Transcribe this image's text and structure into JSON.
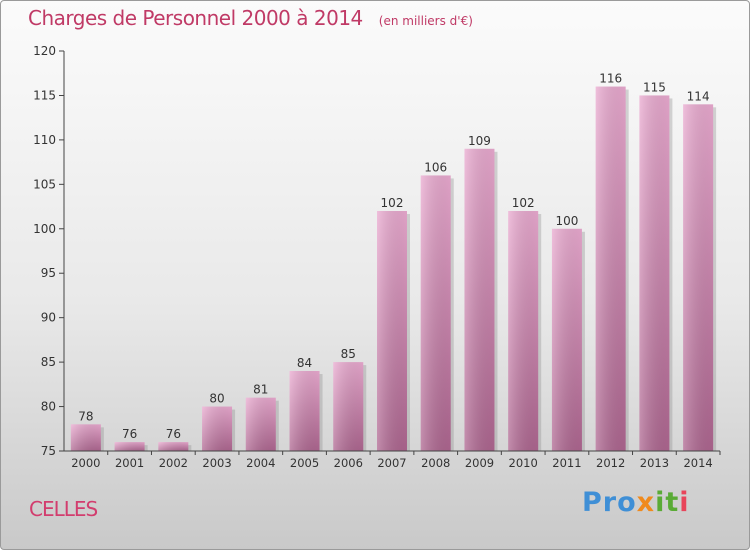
{
  "header": {
    "title": "Charges de Personnel 2000 à 2014",
    "subtitle": "(en milliers d'€)"
  },
  "commune": "CELLES",
  "logo": {
    "text": "Proxiti",
    "letters": [
      "Pro",
      "x",
      "it",
      "i"
    ]
  },
  "colors": {
    "title": "#c03a66",
    "bar_top": "#e9a9cf",
    "bar_bottom": "#b0668f",
    "axis": "#333333"
  },
  "chart_data": {
    "type": "bar",
    "categories": [
      "2000",
      "2001",
      "2002",
      "2003",
      "2004",
      "2005",
      "2006",
      "2007",
      "2008",
      "2009",
      "2010",
      "2011",
      "2012",
      "2013",
      "2014"
    ],
    "values": [
      78,
      76,
      76,
      80,
      81,
      84,
      85,
      102,
      106,
      109,
      102,
      100,
      116,
      115,
      114
    ],
    "ylim": [
      75,
      120
    ],
    "yticks": [
      75,
      80,
      85,
      90,
      95,
      100,
      105,
      110,
      115,
      120
    ],
    "grid": false,
    "data_labels": true
  }
}
